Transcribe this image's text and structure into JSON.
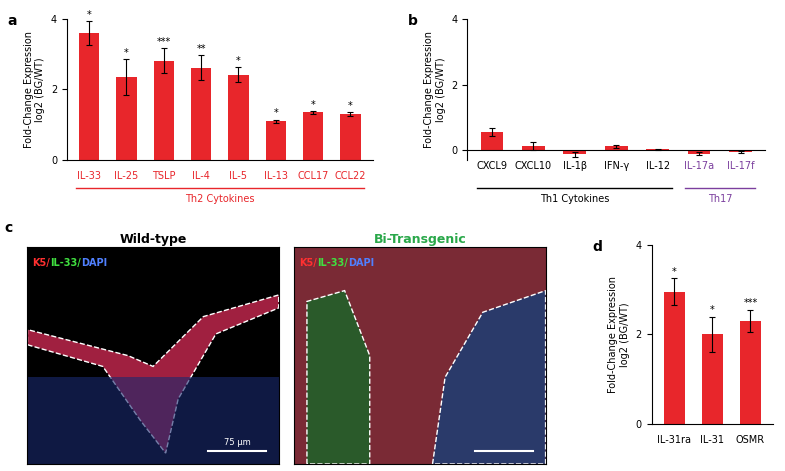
{
  "chart_data": [
    {
      "type": "bar",
      "panel": "a",
      "y_label": "Fold-Change Expression\nlog2 (BG/WT)",
      "categories": [
        "IL-33",
        "IL-25",
        "TSLP",
        "IL-4",
        "IL-5",
        "IL-13",
        "CCL17",
        "CCL22"
      ],
      "values": [
        3.6,
        2.35,
        2.82,
        2.62,
        2.42,
        1.1,
        1.35,
        1.3
      ],
      "errors": [
        0.35,
        0.5,
        0.35,
        0.35,
        0.22,
        0.05,
        0.05,
        0.06
      ],
      "annotations": [
        "*",
        "*",
        "***",
        "**",
        "*",
        "*",
        "*",
        "*"
      ],
      "color": "#e8262b",
      "groups": [
        {
          "name": "Th2 Cytokines",
          "color": "#e8262b",
          "categories": [
            "IL-33",
            "IL-25",
            "TSLP",
            "IL-4",
            "IL-5",
            "IL-13",
            "CCL17",
            "CCL22"
          ]
        }
      ],
      "ylim": [
        0,
        4
      ],
      "yticks": [
        0,
        2,
        4
      ]
    },
    {
      "type": "bar",
      "panel": "b",
      "y_label": "Fold-Change Expression\nlog2 (BG/WT)",
      "categories": [
        "CXCL9",
        "CXCL10",
        "IL-1β",
        "IFN-γ",
        "IL-12",
        "IL-17a",
        "IL-17f"
      ],
      "values": [
        0.55,
        0.12,
        -0.12,
        0.12,
        0.03,
        -0.1,
        -0.04
      ],
      "errors": [
        0.12,
        0.12,
        0.08,
        0.04,
        0.02,
        0.05,
        0.03
      ],
      "color": "#e8262b",
      "groups": [
        {
          "name": "Th1 Cytokines",
          "color": "#000000",
          "categories": [
            "CXCL9",
            "CXCL10",
            "IL-1β",
            "IFN-γ",
            "IL-12"
          ]
        },
        {
          "name": "Th17",
          "color": "#7b3f9e",
          "categories": [
            "IL-17a",
            "IL-17f"
          ]
        }
      ],
      "ylim": [
        -0.3,
        4
      ],
      "yticks": [
        0,
        2,
        4
      ]
    },
    {
      "type": "bar",
      "panel": "d",
      "y_label": "Fold-Change Expression\nlog2 (BG/WT)",
      "categories": [
        "IL-31ra",
        "IL-31",
        "OSMR"
      ],
      "values": [
        2.95,
        2.0,
        2.3
      ],
      "errors": [
        0.3,
        0.4,
        0.25
      ],
      "annotations": [
        "*",
        "*",
        "***"
      ],
      "color": "#e8262b",
      "ylim": [
        0,
        4
      ],
      "yticks": [
        0,
        2,
        4
      ]
    }
  ],
  "image_panel": {
    "panel": "c",
    "images": [
      {
        "title": "Wild-type",
        "title_color": "#000000",
        "stain": "K5/IL-33/DAPI",
        "scale_bar": "75 μm"
      },
      {
        "title": "Bi-Transgenic",
        "title_color": "#2aa84a",
        "stain": "K5/IL-33/DAPI"
      }
    ],
    "stain_colors": [
      "#ff3030",
      "#40e040",
      "#5080ff"
    ]
  }
}
